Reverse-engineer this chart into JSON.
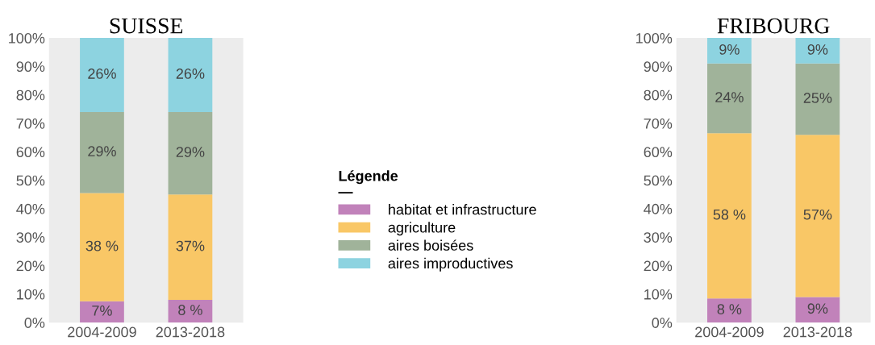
{
  "chart_data": [
    {
      "type": "bar",
      "stacked": true,
      "title": "SUISSE",
      "categories": [
        "2004-2009",
        "2013-2018"
      ],
      "ylim": [
        0,
        100
      ],
      "yticks": [
        {
          "value": 0,
          "label": "0%"
        },
        {
          "value": 10,
          "label": "10%"
        },
        {
          "value": 20,
          "label": "20%"
        },
        {
          "value": 30,
          "label": "30%"
        },
        {
          "value": 40,
          "label": "40%"
        },
        {
          "value": 50,
          "label": "50%"
        },
        {
          "value": 60,
          "label": "60%"
        },
        {
          "value": 70,
          "label": "70%"
        },
        {
          "value": 80,
          "label": "80%"
        },
        {
          "value": 90,
          "label": "90%"
        },
        {
          "value": 100,
          "label": "100%"
        }
      ],
      "grid": false,
      "legend": "right",
      "legend_title": "Légende\n—",
      "series": [
        {
          "name": "habitat et infrastructure",
          "color": "#c182ba",
          "values": [
            7.5,
            8
          ],
          "value_labels": [
            "7%",
            "8 %"
          ]
        },
        {
          "name": "agriculture",
          "color": "#f9c766",
          "values": [
            38,
            37
          ],
          "value_labels": [
            "38 %",
            "37%"
          ]
        },
        {
          "name": "aires boisées",
          "color": "#a0b39a",
          "values": [
            28.5,
            29
          ],
          "value_labels": [
            "29%",
            "29%"
          ]
        },
        {
          "name": "aires improductives",
          "color": "#8dd3e0",
          "values": [
            26,
            26
          ],
          "value_labels": [
            "26%",
            "26%"
          ]
        }
      ]
    },
    {
      "type": "bar",
      "stacked": true,
      "title": "FRIBOURG",
      "categories": [
        "2004-2009",
        "2013-2018"
      ],
      "ylim": [
        0,
        100
      ],
      "yticks": [
        {
          "value": 0,
          "label": "0%"
        },
        {
          "value": 10,
          "label": "10%"
        },
        {
          "value": 20,
          "label": "20%"
        },
        {
          "value": 30,
          "label": "30%"
        },
        {
          "value": 40,
          "label": "40%"
        },
        {
          "value": 50,
          "label": "50%"
        },
        {
          "value": 60,
          "label": "60%"
        },
        {
          "value": 70,
          "label": "70%"
        },
        {
          "value": 80,
          "label": "80%"
        },
        {
          "value": 90,
          "label": "90%"
        },
        {
          "value": 100,
          "label": "100%"
        }
      ],
      "grid": false,
      "series": [
        {
          "color": "#c182ba",
          "values": [
            8.5,
            9
          ],
          "value_labels": [
            "8 %",
            "9%"
          ]
        },
        {
          "color": "#f9c766",
          "values": [
            58,
            57
          ],
          "value_labels": [
            "58 %",
            "57%"
          ]
        },
        {
          "color": "#a0b39a",
          "values": [
            24.5,
            25
          ],
          "value_labels": [
            "24%",
            "25%"
          ]
        },
        {
          "color": "#8dd3e0",
          "values": [
            9,
            9
          ],
          "value_labels": [
            "9%",
            "9%"
          ]
        }
      ]
    }
  ]
}
